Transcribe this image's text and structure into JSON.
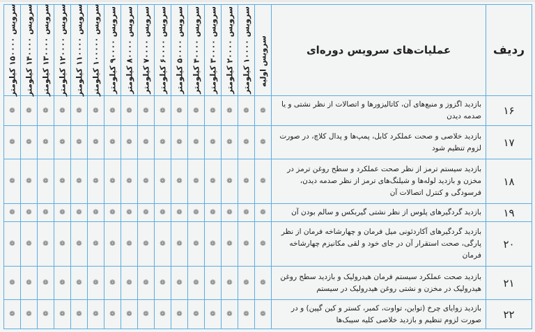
{
  "header": {
    "radif": "ردیف",
    "operations": "عملیات‌های سرویس دوره‌ای",
    "services": [
      "سرویس اولیه",
      "سرویس ۱۰۰۰۰ کیلومتر",
      "سرویس ۲۰۰۰۰ کیلومتر",
      "سرویس ۳۰۰۰۰ کیلومتر",
      "سرویس ۴۰۰۰۰ کیلومتر",
      "سرویس ۵۰۰۰۰ کیلومتر",
      "سرویس ۶۰۰۰۰ کیلومتر",
      "سرویس ۷۰۰۰۰ کیلومتر",
      "سرویس ۸۰۰۰۰ کیلومتر",
      "سرویس ۹۰۰۰۰ کیلومتر",
      "سرویس ۱۰۰۰۰۰ کیلومتر",
      "سرویس ۱۱۰۰۰۰ کیلومتر",
      "سرویس ۱۲۰۰۰۰ کیلومتر",
      "سرویس ۱۳۰۰۰۰ کیلومتر",
      "سرویس ۱۴۰۰۰۰ کیلومتر",
      "سرویس ۱۵۰۰۰۰ کیلومتر"
    ]
  },
  "mark_symbol": "❁",
  "rows": [
    {
      "num": "۱۶",
      "text": "بازدید اگزوز و منبع‌های آن، کاتالیزورها و اتصالات از نظر نشتی و یا صدمه دیدن",
      "marks": [
        true,
        true,
        true,
        true,
        true,
        true,
        true,
        true,
        true,
        true,
        true,
        true,
        true,
        true,
        true,
        true
      ]
    },
    {
      "num": "۱۷",
      "text": "بازدید خلاصی و صحت عملکرد کابل، پمپ‌ها و پدال کلاچ، در صورت لزوم تنظیم شود",
      "marks": [
        true,
        true,
        true,
        true,
        true,
        true,
        true,
        true,
        true,
        true,
        true,
        true,
        true,
        true,
        true,
        true
      ]
    },
    {
      "num": "۱۸",
      "text": "بازدید سیستم ترمز از نظر صحت عملکرد و سطح روغن ترمز در مخزن و بازدید لوله‌ها و شیلنگ‌های ترمز از نظر صدمه دیدن، فرسودگی و کنترل اتصالات آن",
      "marks": [
        true,
        true,
        true,
        true,
        true,
        true,
        true,
        true,
        true,
        true,
        true,
        true,
        true,
        true,
        true,
        true
      ]
    },
    {
      "num": "۱۹",
      "text": "بازدید گردگیرهای پلوس از نظر نشتی گیربکس و سالم بودن آن",
      "marks": [
        true,
        true,
        true,
        true,
        true,
        true,
        true,
        true,
        true,
        true,
        true,
        true,
        true,
        true,
        true,
        true
      ]
    },
    {
      "num": "۲۰",
      "text": "بازدید گردگیرهای آکاردئونی میل فرمان و چهارشاخه فرمان از نظر پارگی، صحت استقرار آن در جای خود و لقی مکانیزم چهارشاخه فرمان",
      "marks": [
        true,
        true,
        true,
        true,
        true,
        true,
        true,
        true,
        true,
        true,
        true,
        true,
        true,
        true,
        true,
        true
      ]
    },
    {
      "num": "۲۱",
      "text": "بازدید صحت عملکرد سیستم فرمان هیدرولیک و بازدید سطح روغن هیدرولیک در مخزن و نشتی روغن هیدرولیک در سیستم",
      "marks": [
        true,
        true,
        true,
        true,
        true,
        true,
        true,
        true,
        true,
        true,
        true,
        true,
        true,
        true,
        true,
        true
      ]
    },
    {
      "num": "۲۲",
      "text": "بازدید زوایای چرخ (تواین، تواوت، کمبر، کستر و کین گپین) و در صورت لزوم تنظیم و بازدید خلاصی کلیه سیبک‌ها",
      "marks": [
        true,
        true,
        true,
        true,
        true,
        true,
        true,
        true,
        true,
        true,
        true,
        true,
        true,
        true,
        true,
        true
      ]
    }
  ]
}
